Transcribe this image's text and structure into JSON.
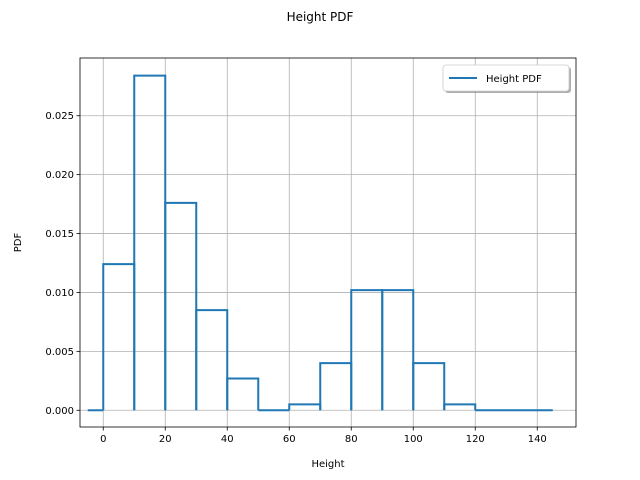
{
  "chart_data": {
    "type": "line",
    "title": "Height PDF",
    "xlabel": "Height",
    "ylabel": "PDF",
    "xlim": [
      -7.5,
      152.5
    ],
    "ylim": [
      -0.00142,
      0.0299
    ],
    "xticks": [
      0,
      20,
      40,
      60,
      80,
      100,
      120,
      140
    ],
    "yticks": [
      0.0,
      0.005,
      0.01,
      0.015,
      0.02,
      0.025
    ],
    "ytick_labels": [
      "0.000",
      "0.005",
      "0.010",
      "0.015",
      "0.020",
      "0.025"
    ],
    "grid": true,
    "legend_position": "top-right",
    "series": [
      {
        "name": "Height PDF",
        "color": "#1f77b4",
        "style": "histogram-step",
        "bins": [
          {
            "x0": -5,
            "x1": 0,
            "y": 0.0
          },
          {
            "x0": 0,
            "x1": 10,
            "y": 0.0124
          },
          {
            "x0": 10,
            "x1": 20,
            "y": 0.0284
          },
          {
            "x0": 20,
            "x1": 30,
            "y": 0.0176
          },
          {
            "x0": 30,
            "x1": 40,
            "y": 0.0085
          },
          {
            "x0": 40,
            "x1": 50,
            "y": 0.0027
          },
          {
            "x0": 50,
            "x1": 60,
            "y": 0.0
          },
          {
            "x0": 60,
            "x1": 70,
            "y": 0.0005
          },
          {
            "x0": 70,
            "x1": 80,
            "y": 0.004
          },
          {
            "x0": 80,
            "x1": 90,
            "y": 0.0102
          },
          {
            "x0": 90,
            "x1": 100,
            "y": 0.0102
          },
          {
            "x0": 100,
            "x1": 110,
            "y": 0.004
          },
          {
            "x0": 110,
            "x1": 120,
            "y": 0.0005
          },
          {
            "x0": 120,
            "x1": 145,
            "y": 0.0
          }
        ]
      }
    ]
  }
}
